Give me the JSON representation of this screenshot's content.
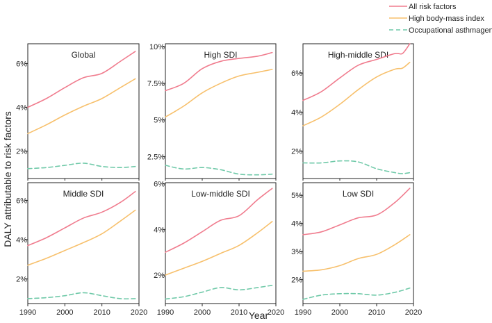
{
  "figure": {
    "ylabel": "DALY attributable to risk factors",
    "xlabel": "Year"
  },
  "legend": {
    "position": "top-right",
    "items": [
      {
        "name": "All risk factors",
        "color": "#f07c8e",
        "dash": "solid"
      },
      {
        "name": "High body-mass index",
        "color": "#f7c06c",
        "dash": "solid"
      },
      {
        "name": "Occupational asthmagens",
        "color": "#6fc9a8",
        "dash": "dashed"
      }
    ]
  },
  "chart_data": [
    {
      "type": "line",
      "title": "Global",
      "xlim": [
        1990,
        2020
      ],
      "xticks": [
        1990,
        2000,
        2010,
        2020
      ],
      "ylim": [
        0.75,
        6.9
      ],
      "yticks": [
        {
          "value": 2,
          "label": "2%"
        },
        {
          "value": 4,
          "label": "4%"
        },
        {
          "value": 6,
          "label": "6%"
        }
      ],
      "x": [
        1990,
        1995,
        2000,
        2005,
        2010,
        2015,
        2019
      ],
      "series": [
        {
          "name": "All risk factors",
          "values": [
            4.0,
            4.4,
            4.9,
            5.35,
            5.55,
            6.1,
            6.55
          ]
        },
        {
          "name": "High body-mass index",
          "values": [
            2.8,
            3.2,
            3.65,
            4.05,
            4.4,
            4.9,
            5.3
          ]
        },
        {
          "name": "Occupational asthmagens",
          "values": [
            1.2,
            1.25,
            1.35,
            1.45,
            1.3,
            1.25,
            1.3
          ]
        }
      ]
    },
    {
      "type": "line",
      "title": "High SDI",
      "xlim": [
        1990,
        2020
      ],
      "xticks": [
        1990,
        2000,
        2010,
        2020
      ],
      "ylim": [
        1.0,
        10.2
      ],
      "yticks": [
        {
          "value": 2.5,
          "label": "2.5%"
        },
        {
          "value": 5,
          "label": "5%"
        },
        {
          "value": 7.5,
          "label": "7.5%"
        },
        {
          "value": 10,
          "label": "10%"
        }
      ],
      "x": [
        1990,
        1995,
        2000,
        2005,
        2010,
        2015,
        2019
      ],
      "series": [
        {
          "name": "All risk factors",
          "values": [
            7.0,
            7.5,
            8.5,
            9.0,
            9.2,
            9.35,
            9.6
          ]
        },
        {
          "name": "High body-mass index",
          "values": [
            5.2,
            5.95,
            6.85,
            7.5,
            8.0,
            8.25,
            8.45
          ]
        },
        {
          "name": "Occupational asthmagens",
          "values": [
            1.9,
            1.65,
            1.75,
            1.6,
            1.3,
            1.25,
            1.3
          ]
        }
      ]
    },
    {
      "type": "line",
      "title": "High-middle SDI",
      "xlim": [
        1990,
        2020
      ],
      "xticks": [
        1990,
        2000,
        2010,
        2020
      ],
      "ylim": [
        0.6,
        7.5
      ],
      "yticks": [
        {
          "value": 2,
          "label": "2%"
        },
        {
          "value": 4,
          "label": "4%"
        },
        {
          "value": 6,
          "label": "6%"
        }
      ],
      "x": [
        1990,
        1995,
        2000,
        2005,
        2010,
        2015,
        2017,
        2019
      ],
      "series": [
        {
          "name": "All risk factors",
          "values": [
            4.6,
            5.05,
            5.75,
            6.4,
            6.7,
            7.0,
            7.0,
            7.5
          ]
        },
        {
          "name": "High body-mass index",
          "values": [
            3.3,
            3.75,
            4.4,
            5.15,
            5.8,
            6.2,
            6.25,
            6.55
          ]
        },
        {
          "name": "Occupational asthmagens",
          "values": [
            1.4,
            1.4,
            1.5,
            1.45,
            1.1,
            0.9,
            0.85,
            0.9
          ]
        }
      ]
    },
    {
      "type": "line",
      "title": "Middle SDI",
      "xlim": [
        1990,
        2020
      ],
      "xticks": [
        1990,
        2000,
        2010,
        2020
      ],
      "ylim": [
        0.75,
        6.9
      ],
      "yticks": [
        {
          "value": 2,
          "label": "2%"
        },
        {
          "value": 4,
          "label": "4%"
        },
        {
          "value": 6,
          "label": "6%"
        }
      ],
      "x": [
        1990,
        1995,
        2000,
        2005,
        2010,
        2015,
        2019
      ],
      "series": [
        {
          "name": "All risk factors",
          "values": [
            3.7,
            4.1,
            4.6,
            5.1,
            5.4,
            5.9,
            6.45
          ]
        },
        {
          "name": "High body-mass index",
          "values": [
            2.7,
            3.05,
            3.45,
            3.85,
            4.3,
            4.95,
            5.5
          ]
        },
        {
          "name": "Occupational asthmagens",
          "values": [
            1.0,
            1.05,
            1.15,
            1.3,
            1.15,
            1.0,
            1.0
          ]
        }
      ]
    },
    {
      "type": "line",
      "title": "Low-middle SDI",
      "xlim": [
        1990,
        2020
      ],
      "xticks": [
        1990,
        2000,
        2010,
        2020
      ],
      "ylim": [
        0.75,
        6.05
      ],
      "yticks": [
        {
          "value": 2,
          "label": "2%"
        },
        {
          "value": 4,
          "label": "4%"
        },
        {
          "value": 6,
          "label": "6%"
        }
      ],
      "x": [
        1990,
        1995,
        2000,
        2005,
        2010,
        2015,
        2019
      ],
      "series": [
        {
          "name": "All risk factors",
          "values": [
            3.0,
            3.4,
            3.9,
            4.4,
            4.6,
            5.3,
            5.8
          ]
        },
        {
          "name": "High body-mass index",
          "values": [
            2.0,
            2.3,
            2.6,
            2.95,
            3.3,
            3.85,
            4.35
          ]
        },
        {
          "name": "Occupational asthmagens",
          "values": [
            0.95,
            1.05,
            1.25,
            1.45,
            1.35,
            1.45,
            1.55
          ]
        }
      ]
    },
    {
      "type": "line",
      "title": "Low SDI",
      "xlim": [
        1990,
        2020
      ],
      "xticks": [
        1990,
        2000,
        2010,
        2020
      ],
      "ylim": [
        1.15,
        5.45
      ],
      "yticks": [
        {
          "value": 2,
          "label": "2%"
        },
        {
          "value": 3,
          "label": "3%"
        },
        {
          "value": 4,
          "label": "4%"
        },
        {
          "value": 5,
          "label": "5%"
        }
      ],
      "x": [
        1990,
        1995,
        2000,
        2005,
        2010,
        2015,
        2019
      ],
      "series": [
        {
          "name": "All risk factors",
          "values": [
            3.6,
            3.7,
            3.95,
            4.2,
            4.3,
            4.75,
            5.25
          ]
        },
        {
          "name": "High body-mass index",
          "values": [
            2.3,
            2.35,
            2.5,
            2.75,
            2.9,
            3.25,
            3.6
          ]
        },
        {
          "name": "Occupational asthmagens",
          "values": [
            1.3,
            1.45,
            1.5,
            1.5,
            1.45,
            1.55,
            1.7
          ]
        }
      ]
    }
  ]
}
